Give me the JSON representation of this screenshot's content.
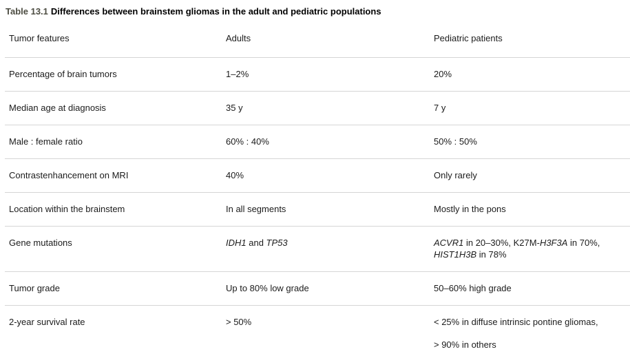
{
  "title": {
    "label": "Table 13.1",
    "text": "Differences between brainstem gliomas in the adult and pediatric populations"
  },
  "colors": {
    "title_label": "#4c4c41",
    "rule": "#d5d5d5",
    "text": "#1b1b1b",
    "background": "#ffffff"
  },
  "table": {
    "columns": [
      {
        "key": "feature",
        "label": "Tumor features"
      },
      {
        "key": "adults",
        "label": "Adults"
      },
      {
        "key": "pediatric",
        "label": "Pediatric patients"
      }
    ],
    "rows": [
      {
        "feature": "Percentage of brain tumors",
        "adults": [
          [
            {
              "t": "1–2%"
            }
          ]
        ],
        "pediatric": [
          [
            {
              "t": "20%"
            }
          ]
        ]
      },
      {
        "feature": "Median age at diagnosis",
        "adults": [
          [
            {
              "t": "35 y"
            }
          ]
        ],
        "pediatric": [
          [
            {
              "t": "7 y"
            }
          ]
        ]
      },
      {
        "feature": "Male : female ratio",
        "adults": [
          [
            {
              "t": "60% : 40%"
            }
          ]
        ],
        "pediatric": [
          [
            {
              "t": "50% : 50%"
            }
          ]
        ]
      },
      {
        "feature": "Contrastenhancement on MRI",
        "adults": [
          [
            {
              "t": "40%"
            }
          ]
        ],
        "pediatric": [
          [
            {
              "t": "Only rarely"
            }
          ]
        ]
      },
      {
        "feature": "Location within the brainstem",
        "adults": [
          [
            {
              "t": "In all segments"
            }
          ]
        ],
        "pediatric": [
          [
            {
              "t": "Mostly in the pons"
            }
          ]
        ]
      },
      {
        "feature": "Gene mutations",
        "adults": [
          [
            {
              "t": "IDH1",
              "i": true
            },
            {
              "t": " and "
            },
            {
              "t": "TP53",
              "i": true
            }
          ]
        ],
        "pediatric": [
          [
            {
              "t": "ACVR1",
              "i": true
            },
            {
              "t": " in 20–30%, K27M-"
            },
            {
              "t": "H3F3A",
              "i": true
            },
            {
              "t": " in 70%,"
            },
            {
              "br": true
            },
            {
              "t": "HIST1H3B",
              "i": true
            },
            {
              "t": " in 78%"
            }
          ]
        ]
      },
      {
        "feature": "Tumor grade",
        "adults": [
          [
            {
              "t": "Up to 80% low grade"
            }
          ]
        ],
        "pediatric": [
          [
            {
              "t": "50–60% high grade"
            }
          ]
        ]
      },
      {
        "feature": "2-year survival rate",
        "adults": [
          [
            {
              "t": "> 50%"
            }
          ]
        ],
        "pediatric": [
          [
            {
              "t": "< 25% in diffuse intrinsic pontine gliomas,"
            }
          ],
          [
            {
              "t": "> 90% in others"
            }
          ]
        ]
      }
    ]
  }
}
